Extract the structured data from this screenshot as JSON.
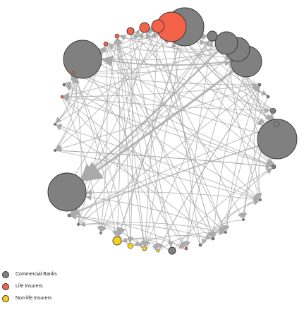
{
  "legend": {
    "items": [
      {
        "label": "Commercial Banks",
        "color": "#808080"
      },
      {
        "label": "Life Insurers",
        "color": "#f4624a"
      },
      {
        "label": "Non-life Insurers",
        "color": "#f3d31c"
      }
    ]
  },
  "colors": {
    "edge": "#aaaaaa",
    "node_stroke": "#333333",
    "commercial_banks": "#808080",
    "life_insurers": "#f4624a",
    "non_life_insurers": "#f3d31c"
  }
}
